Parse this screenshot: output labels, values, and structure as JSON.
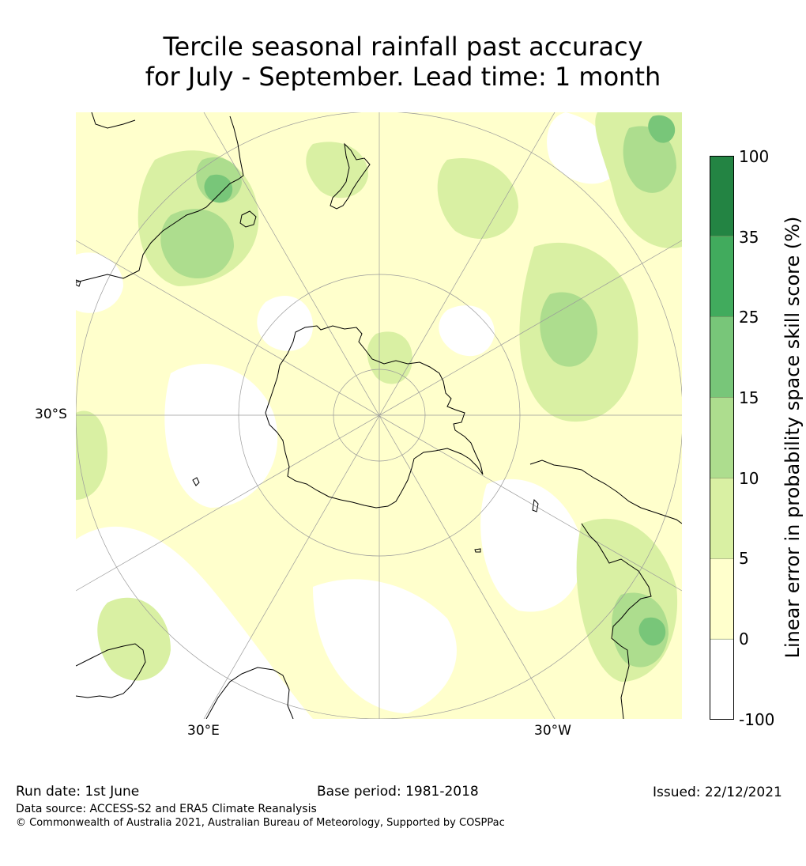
{
  "title": {
    "line1": "Tercile seasonal rainfall past accuracy",
    "line2": "for July - September. Lead time: 1 month"
  },
  "map": {
    "projection": "south polar stereographic",
    "lat_label": "30°S",
    "lon_labels": [
      "30°E",
      "30°W"
    ],
    "coastline_color": "#000000",
    "graticule_color": "#9a9a9a"
  },
  "colorbar": {
    "label": "Linear error in probability space skill score (%)",
    "ticks": [
      "100",
      "35",
      "25",
      "15",
      "10",
      "5",
      "0",
      "-100"
    ],
    "bins": [
      {
        "range": [
          35,
          100
        ],
        "color": "#238443"
      },
      {
        "range": [
          25,
          35
        ],
        "color": "#41ab5d"
      },
      {
        "range": [
          15,
          25
        ],
        "color": "#78c679"
      },
      {
        "range": [
          10,
          15
        ],
        "color": "#addd8e"
      },
      {
        "range": [
          5,
          10
        ],
        "color": "#d9f0a3"
      },
      {
        "range": [
          0,
          5
        ],
        "color": "#ffffcc"
      },
      {
        "range": [
          -100,
          0
        ],
        "color": "#ffffff"
      }
    ]
  },
  "footer": {
    "run_date": "Run date: 1st June",
    "base_period": "Base period: 1981-2018",
    "issued": "Issued: 22/12/2021",
    "data_source": "Data source: ACCESS-S2 and ERA5 Climate Reanalysis",
    "copyright": "© Commonwealth of Australia 2021, Australian Bureau of Meteorology, Supported by COSPPac"
  }
}
